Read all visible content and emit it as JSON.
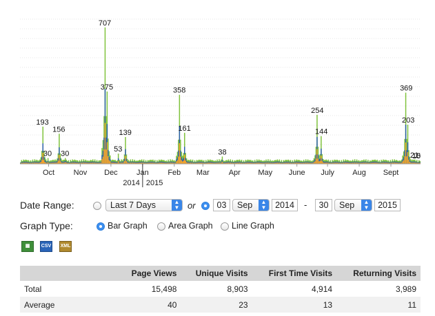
{
  "chart_data": {
    "type": "bar",
    "x_range": [
      "2014-09-03",
      "2015-09-30"
    ],
    "ylim": [
      0,
      760
    ],
    "x_tick_labels": [
      "Oct",
      "Nov",
      "Dec",
      "Jan",
      "Feb",
      "Mar",
      "Apr",
      "May",
      "June",
      "July",
      "Aug",
      "Sept"
    ],
    "year_labels": [
      "2014",
      "2015"
    ],
    "series": [
      {
        "color": "#7ec23a"
      },
      {
        "color": "#2a5fa8"
      },
      {
        "color": "#f2a32d"
      }
    ],
    "peak_labels": [
      {
        "date": "2014-09-25",
        "label": "193"
      },
      {
        "date": "2014-09-30",
        "label": "30"
      },
      {
        "date": "2014-10-11",
        "label": "156"
      },
      {
        "date": "2014-10-17",
        "label": "30"
      },
      {
        "date": "2014-11-25",
        "label": "707"
      },
      {
        "date": "2014-11-27",
        "label": "375"
      },
      {
        "date": "2014-12-08",
        "label": "53"
      },
      {
        "date": "2014-12-15",
        "label": "139"
      },
      {
        "date": "2015-02-06",
        "label": "358"
      },
      {
        "date": "2015-02-11",
        "label": "161"
      },
      {
        "date": "2015-03-20",
        "label": "38"
      },
      {
        "date": "2015-06-21",
        "label": "254"
      },
      {
        "date": "2015-06-25",
        "label": "144"
      },
      {
        "date": "2015-09-16",
        "label": "369"
      },
      {
        "date": "2015-09-18",
        "label": "203"
      },
      {
        "date": "2015-09-24",
        "label": "21"
      },
      {
        "date": "2015-09-26",
        "label": "15"
      },
      {
        "date": "2015-09-28",
        "label": "0"
      }
    ]
  },
  "controls": {
    "date_range_label": "Date Range:",
    "preset_value": "Last 7 Days",
    "or_label": "or",
    "from_day": "03",
    "from_month": "Sep",
    "from_year": "2014",
    "dash": "-",
    "to_day": "30",
    "to_month": "Sep",
    "to_year": "2015",
    "graph_type_label": "Graph Type:",
    "bar_graph": "Bar Graph",
    "area_graph": "Area Graph",
    "line_graph": "Line Graph"
  },
  "export_icons": {
    "excel": "excel-icon",
    "csv": "CSV",
    "xml": "XML"
  },
  "table": {
    "headers": [
      "",
      "Page Views",
      "Unique Visits",
      "First Time Visits",
      "Returning Visits"
    ],
    "rows": [
      [
        "Total",
        "15,498",
        "8,903",
        "4,914",
        "3,989"
      ],
      [
        "Average",
        "40",
        "23",
        "13",
        "11"
      ]
    ]
  }
}
